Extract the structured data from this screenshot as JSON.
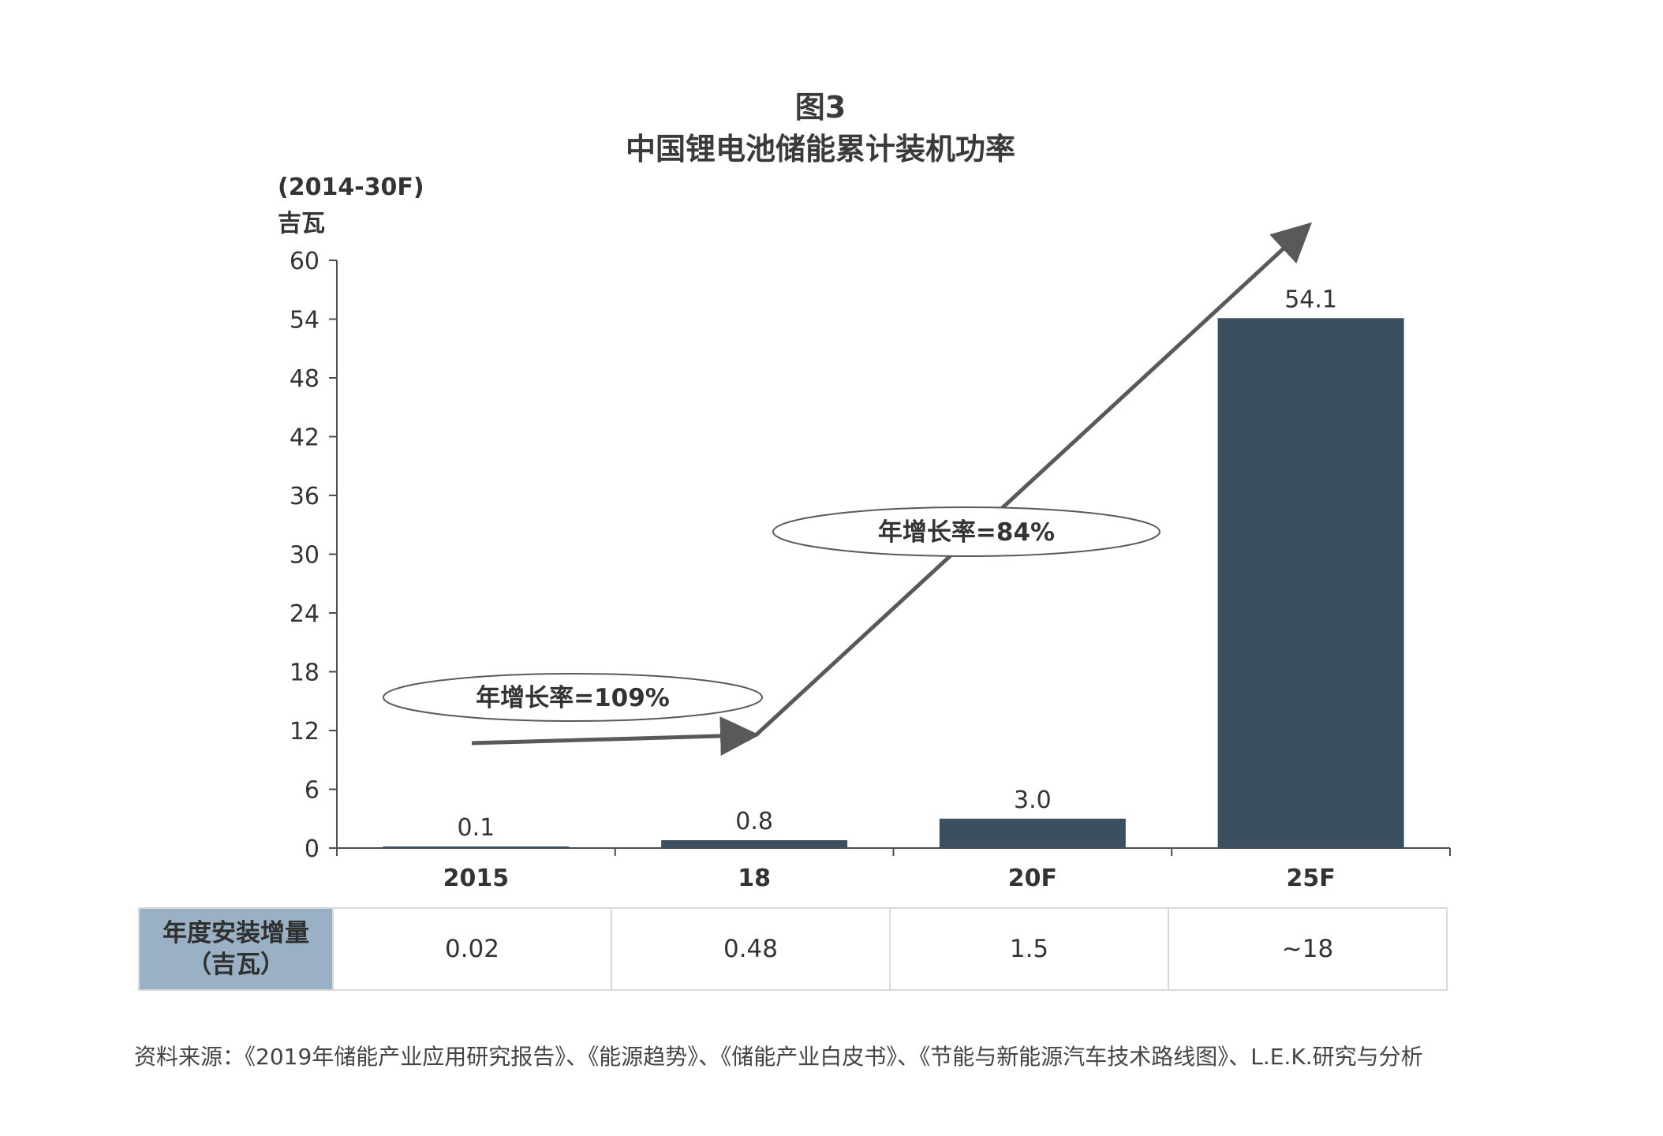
{
  "figure_label": "图3",
  "title": "中国锂电池储能累计装机功率",
  "unit_range": "(2014-30F)",
  "unit": "吉瓦",
  "chart_data": {
    "type": "bar",
    "categories": [
      "2015",
      "18",
      "20F",
      "25F"
    ],
    "values": [
      0.1,
      0.8,
      3.0,
      54.1
    ],
    "value_labels": [
      "0.1",
      "0.8",
      "3.0",
      "54.1"
    ],
    "ylim": [
      0,
      60
    ],
    "yticks": [
      0,
      6,
      12,
      18,
      24,
      30,
      36,
      42,
      48,
      54,
      60
    ],
    "bar_color": "#3c4f5e",
    "grid": false,
    "annotations": [
      {
        "text": "年增长率=109%"
      },
      {
        "text": "年增长率=84%"
      }
    ]
  },
  "table": {
    "header_line1": "年度安装增量",
    "header_line2": "（吉瓦）",
    "header_color": "#9ab0c4",
    "values": [
      "0.02",
      "0.48",
      "1.5",
      "~18"
    ]
  },
  "source": "资料来源：《2019年储能产业应用研究报告》、《能源趋势》、《储能产业白皮书》、《节能与新能源汽车技术路线图》、L.E.K.研究与分析"
}
